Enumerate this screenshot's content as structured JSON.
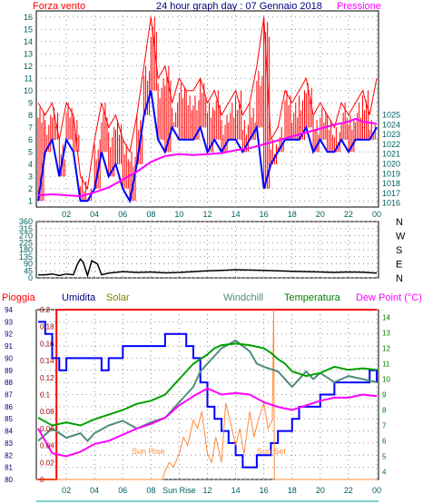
{
  "header": {
    "title": "24 hour graph day : 07 Gennaio 2018",
    "left_label": "Forza vento",
    "right_label": "Pressione"
  },
  "colors": {
    "wind_gust": "#ff0000",
    "wind_avg": "#0000ff",
    "pressure": "#ff00ff",
    "direction": "#000000",
    "rain": "#ff0000",
    "humidity": "#0000ff",
    "solar": "#ff8c3c",
    "windchill": "#4c8c7c",
    "temperature": "#00a000",
    "dewpoint": "#ff00ff",
    "tick_text": "#006060",
    "bottom_axis": "#00a0a0"
  },
  "chart_data": [
    {
      "type": "line",
      "name": "wind-pressure",
      "title": "24 hour graph day : 07 Gennaio 2018",
      "y_left_label": "Forza vento",
      "y_right_label": "Pressione",
      "x_ticks": [
        "02",
        "04",
        "06",
        "08",
        "10",
        "12",
        "14",
        "16",
        "18",
        "20",
        "22",
        "00"
      ],
      "y_left_ticks": [
        1,
        2,
        3,
        4,
        5,
        6,
        7,
        8,
        9,
        10,
        11,
        12,
        13,
        14,
        15,
        16
      ],
      "y_right_ticks": [
        1016,
        1017,
        1018,
        1019,
        1020,
        1021,
        1022,
        1023,
        1024,
        1025
      ],
      "ylim_left": [
        0.5,
        16.5
      ],
      "ylim_right": [
        1015.6,
        1035.6
      ],
      "grid": true,
      "series": [
        {
          "name": "Raffica",
          "axis": "left",
          "x": [
            0.0,
            0.5,
            1.0,
            1.5,
            2.0,
            2.5,
            3.0,
            3.5,
            4.0,
            4.5,
            5.0,
            5.5,
            6.0,
            6.5,
            7.0,
            7.5,
            8.0,
            8.5,
            9.0,
            9.5,
            10.0,
            10.5,
            11.0,
            11.5,
            12.0,
            12.5,
            13.0,
            13.5,
            14.0,
            14.5,
            15.0,
            15.5,
            16.0,
            16.5,
            17.0,
            17.5,
            18.0,
            18.5,
            19.0,
            19.5,
            20.0,
            20.5,
            21.0,
            21.5,
            22.0,
            22.5,
            23.0,
            23.5,
            24.0
          ],
          "values": [
            9,
            8,
            9,
            6,
            9,
            8,
            3,
            2,
            6,
            9,
            7,
            8,
            6,
            5,
            8,
            12,
            16,
            11,
            12,
            9,
            11,
            10,
            10,
            11,
            9,
            10,
            8,
            9,
            10,
            8,
            9,
            12,
            16,
            6,
            7,
            10,
            9,
            10,
            11,
            8,
            9,
            8,
            7,
            9,
            8,
            9,
            10,
            8,
            11
          ]
        },
        {
          "name": "Vento medio",
          "axis": "left",
          "x": [
            0.0,
            0.5,
            1.0,
            1.5,
            2.0,
            2.5,
            3.0,
            3.5,
            4.0,
            4.5,
            5.0,
            5.5,
            6.0,
            6.5,
            7.0,
            7.5,
            8.0,
            8.5,
            9.0,
            9.5,
            10.0,
            10.5,
            11.0,
            11.5,
            12.0,
            12.5,
            13.0,
            13.5,
            14.0,
            14.5,
            15.0,
            15.5,
            16.0,
            16.5,
            17.0,
            17.5,
            18.0,
            18.5,
            19.0,
            19.5,
            20.0,
            20.5,
            21.0,
            21.5,
            22.0,
            22.5,
            23.0,
            23.5,
            24.0
          ],
          "values": [
            1,
            5,
            6,
            3,
            6,
            5,
            1,
            1,
            2,
            5,
            3,
            4,
            2,
            1,
            4,
            8,
            10,
            6,
            5,
            7,
            6,
            6,
            6,
            7,
            5,
            6,
            5,
            6,
            6,
            5,
            6,
            7,
            2,
            4,
            5,
            6,
            6,
            6,
            7,
            5,
            6,
            5,
            5,
            6,
            5,
            6,
            6,
            6,
            7
          ]
        },
        {
          "name": "Pressione",
          "axis": "right",
          "x": [
            0,
            1,
            2,
            3,
            4,
            5,
            6,
            7,
            8,
            9,
            10,
            11,
            12,
            13,
            14,
            15,
            16,
            17,
            18,
            19,
            20,
            21,
            22,
            22.5,
            23,
            24
          ],
          "values": [
            1016.8,
            1016.9,
            1016.8,
            1016.7,
            1017.1,
            1017.6,
            1018.4,
            1019.2,
            1020.2,
            1020.8,
            1021.0,
            1020.9,
            1021.0,
            1021.1,
            1021.4,
            1021.6,
            1022.0,
            1022.4,
            1022.8,
            1023.2,
            1023.6,
            1024.0,
            1024.3,
            1024.6,
            1024.3,
            1024.1
          ]
        }
      ]
    },
    {
      "type": "line",
      "name": "wind-direction",
      "y_ticks": [
        0,
        45,
        90,
        135,
        180,
        225,
        270,
        315,
        360
      ],
      "compass_labels": [
        "N",
        "W",
        "S",
        "E",
        "N"
      ],
      "ylim": [
        0,
        360
      ],
      "grid": true,
      "series": [
        {
          "name": "Direzione",
          "x": [
            0,
            0.5,
            1,
            1.5,
            2,
            2.5,
            2.8,
            3,
            3.2,
            3.5,
            3.8,
            4,
            4.2,
            4.5,
            5,
            6,
            7,
            8,
            9,
            10,
            11,
            12,
            13,
            14,
            15,
            16,
            17,
            18,
            19,
            20,
            21,
            22,
            23,
            24
          ],
          "values": [
            20,
            20,
            25,
            15,
            25,
            20,
            90,
            120,
            100,
            15,
            110,
            100,
            90,
            20,
            30,
            40,
            35,
            38,
            32,
            35,
            40,
            45,
            48,
            52,
            50,
            48,
            45,
            42,
            40,
            38,
            35,
            38,
            36,
            30
          ]
        }
      ]
    },
    {
      "type": "line",
      "name": "temperature-humidity",
      "legend": [
        "Pioggia",
        "Umidita",
        "Solar",
        "Windchill",
        "Temperatura",
        "Dew Point (°C)"
      ],
      "x_ticks": [
        "02",
        "04",
        "06",
        "08",
        "Sun Rise",
        "12",
        "14",
        "16",
        "18",
        "20",
        "22",
        "00"
      ],
      "rain_ticks": [
        "0",
        "0.02",
        "0.04",
        "0.06",
        "0.08",
        "0.1",
        "0.12",
        "0.14",
        "0.16",
        "0.18",
        "0.2"
      ],
      "humidity_ticks": [
        80,
        81,
        82,
        83,
        84,
        85,
        86,
        87,
        88,
        89,
        90,
        91,
        92,
        93,
        94
      ],
      "temp_ticks": [
        4,
        5,
        6,
        7,
        8,
        9,
        10,
        11,
        12,
        13,
        14
      ],
      "annotations": [
        "Sun Rise",
        "Sun Set"
      ],
      "ylim_rain": [
        0,
        0.2
      ],
      "ylim_humidity": [
        80,
        94
      ],
      "ylim_temp": [
        3.5,
        14.5
      ],
      "grid": true,
      "series": [
        {
          "name": "Pioggia",
          "axis": "rain",
          "x": [
            0,
            1.3,
            1.3,
            24
          ],
          "values": [
            0,
            0,
            0.2,
            0.2
          ]
        },
        {
          "name": "Umidita",
          "axis": "humidity",
          "x": [
            0,
            0.5,
            1,
            1.5,
            2,
            3,
            4,
            4.5,
            5,
            6,
            7,
            7.5,
            8,
            9,
            10,
            10.5,
            11,
            11.5,
            12,
            12.5,
            13,
            13.5,
            14,
            14.5,
            15,
            15.5,
            16,
            16.5,
            17,
            17.5,
            18,
            18.5,
            19,
            20,
            20.5,
            21,
            22,
            23,
            23.5,
            24
          ],
          "values": [
            93,
            92,
            90,
            89,
            90,
            90,
            90,
            89,
            90,
            91,
            91,
            91,
            91,
            92,
            92,
            91,
            90,
            88,
            86,
            85,
            84,
            83,
            82,
            81,
            81,
            82,
            82,
            83,
            84,
            84,
            85,
            86,
            86,
            87,
            87,
            88,
            88,
            88,
            89,
            88
          ]
        },
        {
          "name": "Solar",
          "axis": "rain",
          "x": [
            0,
            8.8,
            9.0,
            9.3,
            9.6,
            10,
            10.3,
            10.6,
            11,
            11.3,
            11.6,
            12,
            12.3,
            12.6,
            13,
            13.3,
            13.6,
            14,
            14.3,
            14.6,
            15,
            15.3,
            15.6,
            16,
            16.3,
            16.6,
            16.7,
            16.75,
            24
          ],
          "values": [
            0,
            0,
            0.01,
            0.02,
            0.015,
            0.03,
            0.05,
            0.04,
            0.07,
            0.06,
            0.08,
            0.03,
            0.02,
            0.05,
            0.02,
            0.09,
            0.07,
            0.04,
            0.06,
            0.03,
            0.08,
            0.05,
            0.07,
            0.09,
            0.06,
            0.07,
            0.2,
            0,
            0
          ]
        },
        {
          "name": "Windchill",
          "axis": "temp",
          "x": [
            0,
            1,
            2,
            3,
            3.5,
            4,
            5,
            6,
            7,
            8,
            9,
            10,
            11,
            11.5,
            12,
            13,
            14,
            15,
            15.5,
            16,
            17,
            18,
            19,
            19.5,
            20,
            21,
            22,
            23,
            24
          ],
          "values": [
            6.0,
            6.8,
            6.2,
            6.5,
            6.0,
            6.5,
            7.0,
            7.3,
            6.8,
            7.2,
            7.5,
            8.5,
            9.5,
            10.5,
            11.0,
            12.0,
            12.5,
            11.8,
            11.0,
            10.8,
            10.5,
            9.5,
            10.5,
            10.0,
            10.4,
            9.8,
            10.2,
            10.0,
            9.8
          ]
        },
        {
          "name": "Temperatura",
          "axis": "temp",
          "x": [
            0,
            1,
            2,
            3,
            4,
            5,
            6,
            7,
            8,
            9,
            10,
            11,
            12,
            12.5,
            13,
            14,
            15,
            16,
            16.5,
            17,
            17.5,
            18,
            19,
            20,
            21,
            22,
            23,
            24
          ],
          "values": [
            7.5,
            7.0,
            7.2,
            7.0,
            7.4,
            7.7,
            8.0,
            8.4,
            8.6,
            9.0,
            10.0,
            11.0,
            11.6,
            12.0,
            12.2,
            12.3,
            12.2,
            12.0,
            11.7,
            11.3,
            11.0,
            10.5,
            10.2,
            10.4,
            10.8,
            10.6,
            10.7,
            10.6
          ]
        },
        {
          "name": "Dew Point (°C)",
          "axis": "temp",
          "x": [
            0,
            1,
            2,
            3,
            4,
            5,
            6,
            7,
            8,
            9,
            10,
            11,
            12,
            12.5,
            13,
            14,
            15,
            16,
            17,
            18,
            19,
            20,
            21,
            22,
            23,
            24
          ],
          "values": [
            6.8,
            5.2,
            5.0,
            5.3,
            5.8,
            6.0,
            6.4,
            6.8,
            7.1,
            7.5,
            8.3,
            8.9,
            9.4,
            9.2,
            9.0,
            9.1,
            9.0,
            8.5,
            8.2,
            8.0,
            8.3,
            8.6,
            8.8,
            8.8,
            9.0,
            8.9
          ]
        }
      ]
    }
  ]
}
